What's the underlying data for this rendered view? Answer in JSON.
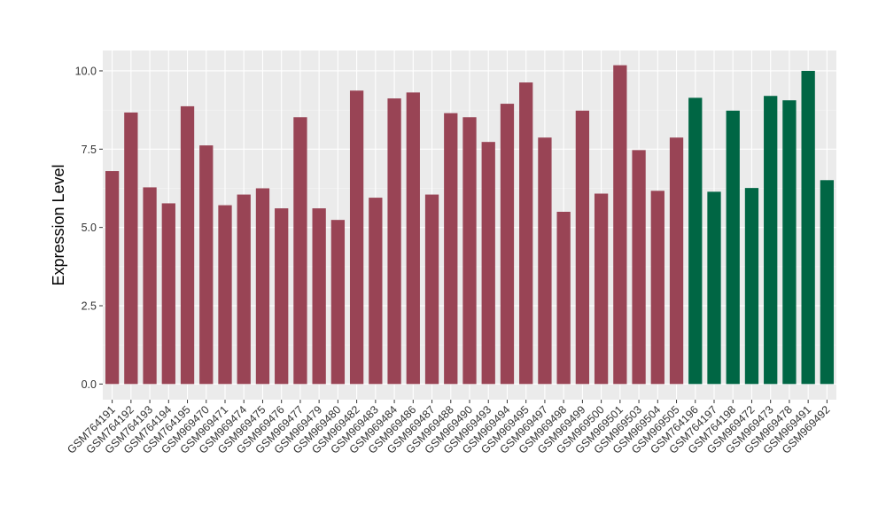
{
  "chart_data": {
    "type": "bar",
    "title": "",
    "xlabel": "",
    "ylabel": "Expression Level",
    "ylim": [
      -0.5,
      10.65
    ],
    "yticks": [
      0.0,
      2.5,
      5.0,
      7.5,
      10.0
    ],
    "ytick_labels": [
      "0.0",
      "2.5",
      "5.0",
      "7.5",
      "10.0"
    ],
    "grid": true,
    "legend": "none",
    "categories": [
      "GSM764191",
      "GSM764192",
      "GSM764193",
      "GSM764194",
      "GSM764195",
      "GSM969470",
      "GSM969471",
      "GSM969474",
      "GSM969475",
      "GSM969476",
      "GSM969477",
      "GSM969479",
      "GSM969480",
      "GSM969482",
      "GSM969483",
      "GSM969484",
      "GSM969486",
      "GSM969487",
      "GSM969488",
      "GSM969490",
      "GSM969493",
      "GSM969494",
      "GSM969495",
      "GSM969497",
      "GSM969498",
      "GSM969499",
      "GSM969500",
      "GSM969501",
      "GSM969503",
      "GSM969504",
      "GSM969505",
      "GSM764196",
      "GSM764197",
      "GSM764198",
      "GSM969472",
      "GSM969473",
      "GSM969478",
      "GSM969491",
      "GSM969492"
    ],
    "values": [
      6.8,
      8.67,
      6.28,
      5.77,
      8.87,
      7.62,
      5.71,
      6.05,
      6.25,
      5.61,
      8.52,
      5.61,
      5.24,
      9.37,
      5.95,
      9.12,
      9.31,
      6.05,
      8.65,
      8.52,
      7.73,
      8.95,
      9.63,
      7.87,
      5.5,
      8.73,
      6.08,
      10.18,
      7.47,
      6.17,
      7.87,
      9.14,
      6.14,
      8.73,
      6.26,
      9.2,
      9.06,
      10.0,
      6.51
    ],
    "bar_colors": [
      "#994455",
      "#994455",
      "#994455",
      "#994455",
      "#994455",
      "#994455",
      "#994455",
      "#994455",
      "#994455",
      "#994455",
      "#994455",
      "#994455",
      "#994455",
      "#994455",
      "#994455",
      "#994455",
      "#994455",
      "#994455",
      "#994455",
      "#994455",
      "#994455",
      "#994455",
      "#994455",
      "#994455",
      "#994455",
      "#994455",
      "#994455",
      "#994455",
      "#994455",
      "#994455",
      "#994455",
      "#006644",
      "#006644",
      "#006644",
      "#006644",
      "#006644",
      "#006644",
      "#006644",
      "#006644"
    ]
  },
  "colors": {
    "panel_background": "#EBEBEB",
    "grid_major": "#FFFFFF",
    "grid_minor": "#F5F5F5",
    "group_1": "#994455",
    "group_2": "#006644"
  }
}
